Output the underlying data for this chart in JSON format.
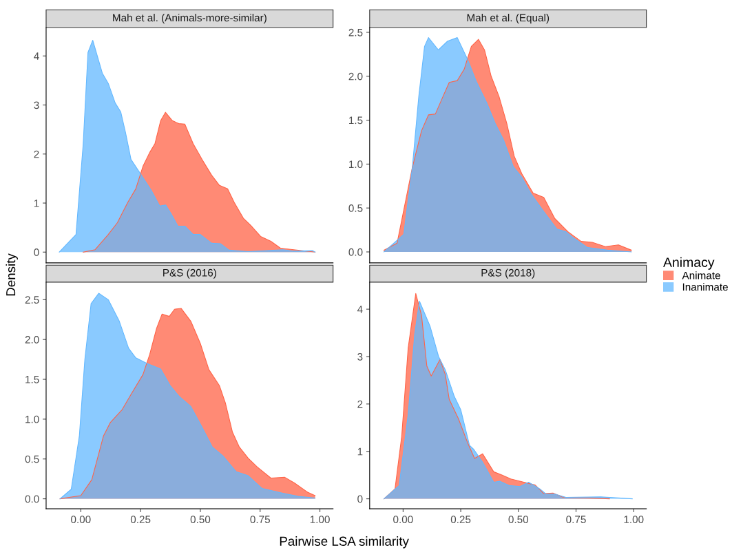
{
  "chart_data": [
    {
      "type": "area",
      "title": "Mah et al. (Animals-more-similar)",
      "legend_title": "Animacy",
      "legend": "right",
      "xlim": [
        -0.145,
        1.055
      ],
      "ylim": [
        -0.22,
        4.58
      ],
      "yticks": [
        0,
        1,
        2,
        3,
        4
      ],
      "tick_labels": "y",
      "grid": false,
      "series": [
        {
          "name": "Animate",
          "color": "#ff6347",
          "x": [
            0.01,
            0.06,
            0.115,
            0.153,
            0.196,
            0.23,
            0.26,
            0.288,
            0.31,
            0.334,
            0.354,
            0.383,
            0.41,
            0.435,
            0.47,
            0.507,
            0.547,
            0.58,
            0.614,
            0.642,
            0.68,
            0.71,
            0.752,
            0.795,
            0.835,
            0.89,
            0.98
          ],
          "values": [
            0,
            0.05,
            0.36,
            0.6,
            1.01,
            1.29,
            1.75,
            2.03,
            2.21,
            2.68,
            2.85,
            2.68,
            2.62,
            2.61,
            2.21,
            1.89,
            1.57,
            1.36,
            1.29,
            1.01,
            0.69,
            0.55,
            0.32,
            0.22,
            0.08,
            0.05,
            0
          ]
        },
        {
          "name": "Inanimate",
          "color": "#63b8ff",
          "x": [
            -0.09,
            -0.02,
            0.01,
            0.03,
            0.05,
            0.09,
            0.115,
            0.144,
            0.167,
            0.187,
            0.21,
            0.248,
            0.297,
            0.33,
            0.355,
            0.378,
            0.406,
            0.435,
            0.47,
            0.5,
            0.547,
            0.585,
            0.62,
            0.7,
            0.845,
            0.89,
            0.97,
            0.98
          ],
          "values": [
            0,
            0.36,
            2.2,
            4.07,
            4.32,
            3.65,
            3.44,
            3.04,
            2.86,
            2.44,
            1.89,
            1.61,
            1.24,
            0.94,
            0.96,
            0.78,
            0.53,
            0.53,
            0.36,
            0.36,
            0.18,
            0.17,
            0.04,
            0.01,
            0.05,
            0.02,
            0.03,
            0
          ]
        }
      ]
    },
    {
      "type": "area",
      "title": "Mah et al. (Equal)",
      "xlim": [
        -0.145,
        1.055
      ],
      "ylim": [
        -0.125,
        2.555
      ],
      "yticks": [
        {
          "value": 0,
          "label": "0.0"
        },
        0.5,
        {
          "value": 1,
          "label": "1.0"
        },
        1.5,
        {
          "value": 2,
          "label": "2.0"
        },
        2.5
      ],
      "tick_labels": "y",
      "grid": false,
      "series": [
        {
          "color": "#ff6347",
          "x": [
            -0.083,
            -0.026,
            0.04,
            0.08,
            0.11,
            0.14,
            0.173,
            0.2,
            0.235,
            0.265,
            0.296,
            0.327,
            0.353,
            0.382,
            0.416,
            0.45,
            0.482,
            0.515,
            0.564,
            0.61,
            0.658,
            0.715,
            0.772,
            0.82,
            0.877,
            0.934,
            0.99
          ],
          "values": [
            0.02,
            0.1,
            0.96,
            1.38,
            1.56,
            1.57,
            1.77,
            1.93,
            1.95,
            2.08,
            2.34,
            2.42,
            2.3,
            2.0,
            1.77,
            1.46,
            1.09,
            0.89,
            0.67,
            0.62,
            0.38,
            0.23,
            0.12,
            0.11,
            0.06,
            0.08,
            0.02
          ]
        },
        {
          "color": "#63b8ff",
          "x": [
            -0.083,
            0.003,
            0.04,
            0.068,
            0.093,
            0.11,
            0.153,
            0.193,
            0.235,
            0.28,
            0.316,
            0.364,
            0.4,
            0.435,
            0.478,
            0.515,
            0.553,
            0.61,
            0.667,
            0.706,
            0.744,
            0.8,
            0.886,
            0.99
          ],
          "values": [
            0,
            0.2,
            0.96,
            1.77,
            2.34,
            2.44,
            2.3,
            2.4,
            2.44,
            2.19,
            1.95,
            1.69,
            1.46,
            1.28,
            0.97,
            0.85,
            0.67,
            0.46,
            0.26,
            0.23,
            0.15,
            0.05,
            0.02,
            0
          ]
        }
      ]
    },
    {
      "type": "area",
      "title": "P&S (2016)",
      "xlabel": "Pairwise LSA similarity",
      "ylabel": "Density",
      "xlim": [
        -0.145,
        1.055
      ],
      "ylim": [
        -0.125,
        2.72
      ],
      "xticks": [
        {
          "value": 0,
          "label": "0.00"
        },
        {
          "value": 0.25,
          "label": "0.25"
        },
        {
          "value": 0.5,
          "label": "0.50"
        },
        {
          "value": 0.75,
          "label": "0.75"
        },
        {
          "value": 1,
          "label": "1.00"
        }
      ],
      "yticks": [
        {
          "value": 0,
          "label": "0.0"
        },
        0.5,
        {
          "value": 1,
          "label": "1.0"
        },
        1.5,
        {
          "value": 2,
          "label": "2.0"
        },
        2.5
      ],
      "grid": false,
      "series": [
        {
          "color": "#ff6347",
          "x": [
            -0.087,
            0.0,
            0.046,
            0.095,
            0.124,
            0.173,
            0.21,
            0.26,
            0.288,
            0.317,
            0.34,
            0.37,
            0.392,
            0.42,
            0.46,
            0.5,
            0.536,
            0.58,
            0.605,
            0.634,
            0.663,
            0.7,
            0.738,
            0.795,
            0.853,
            0.893,
            0.95,
            0.98
          ],
          "values": [
            0,
            0.04,
            0.24,
            0.79,
            0.96,
            1.12,
            1.31,
            1.56,
            1.81,
            2.14,
            2.32,
            2.29,
            2.38,
            2.39,
            2.23,
            1.95,
            1.62,
            1.42,
            1.2,
            0.84,
            0.65,
            0.51,
            0.4,
            0.26,
            0.27,
            0.2,
            0.08,
            0.04
          ]
        },
        {
          "color": "#63b8ff",
          "x": [
            -0.087,
            -0.04,
            -0.006,
            0.017,
            0.043,
            0.075,
            0.115,
            0.161,
            0.2,
            0.23,
            0.277,
            0.334,
            0.374,
            0.41,
            0.46,
            0.507,
            0.55,
            0.594,
            0.65,
            0.7,
            0.758,
            0.845,
            0.91,
            0.98
          ],
          "values": [
            0,
            0.12,
            0.79,
            1.75,
            2.45,
            2.58,
            2.5,
            2.23,
            1.89,
            1.77,
            1.7,
            1.63,
            1.42,
            1.29,
            1.16,
            0.9,
            0.65,
            0.54,
            0.34,
            0.29,
            0.13,
            0.07,
            0.03,
            0.01
          ]
        }
      ]
    },
    {
      "type": "area",
      "title": "P&S (2018)",
      "xlim": [
        -0.145,
        1.055
      ],
      "ylim": [
        -0.21,
        4.57
      ],
      "xticks": [
        {
          "value": 0,
          "label": "0.00"
        },
        {
          "value": 0.25,
          "label": "0.25"
        },
        {
          "value": 0.5,
          "label": "0.50"
        },
        {
          "value": 0.75,
          "label": "0.75"
        },
        {
          "value": 1,
          "label": "1.00"
        }
      ],
      "yticks": [
        0,
        1,
        2,
        3,
        4
      ],
      "grid": false,
      "series": [
        {
          "color": "#ff6347",
          "x": [
            -0.083,
            -0.035,
            -0.006,
            0.022,
            0.055,
            0.08,
            0.103,
            0.122,
            0.16,
            0.183,
            0.2,
            0.24,
            0.28,
            0.31,
            0.345,
            0.393,
            0.43,
            0.467,
            0.515,
            0.573,
            0.61,
            0.65,
            0.695,
            0.79,
            0.895
          ],
          "values": [
            0,
            0.21,
            1.32,
            3.18,
            4.33,
            3.87,
            2.8,
            2.59,
            2.94,
            2.62,
            2.1,
            1.69,
            1.18,
            0.85,
            0.95,
            0.57,
            0.5,
            0.42,
            0.36,
            0.29,
            0.11,
            0.12,
            0.03,
            0.02,
            0
          ]
        },
        {
          "color": "#63b8ff",
          "x": [
            -0.083,
            -0.017,
            0.022,
            0.05,
            0.071,
            0.117,
            0.154,
            0.183,
            0.222,
            0.25,
            0.288,
            0.307,
            0.345,
            0.393,
            0.42,
            0.46,
            0.507,
            0.544,
            0.593,
            0.62,
            0.658,
            0.706,
            0.857,
            0.994
          ],
          "values": [
            0,
            0.28,
            1.78,
            3.46,
            4.17,
            3.64,
            3.0,
            2.72,
            2.16,
            1.88,
            1.13,
            1.04,
            0.77,
            0.35,
            0.37,
            0.28,
            0.26,
            0.35,
            0.21,
            0.1,
            0.1,
            0.03,
            0.04,
            0
          ]
        }
      ]
    }
  ]
}
